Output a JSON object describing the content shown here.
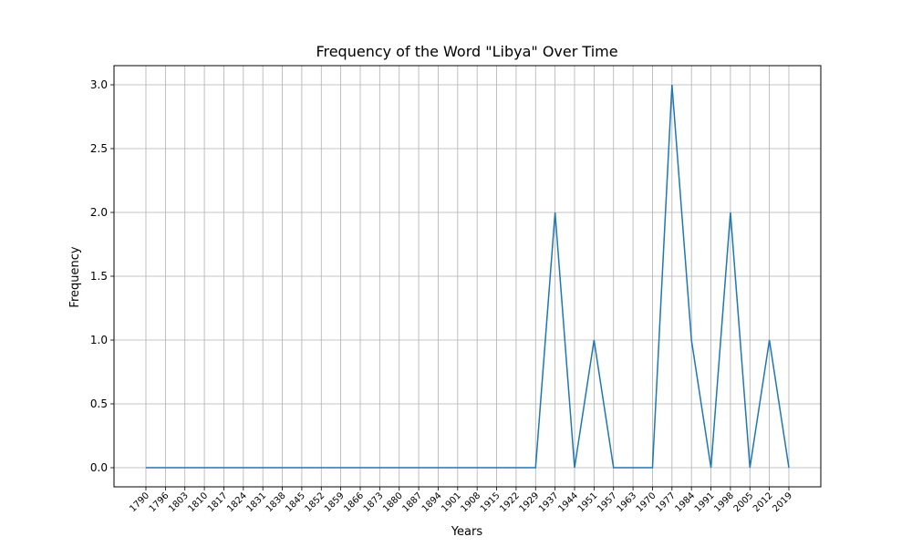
{
  "chart_data": {
    "type": "line",
    "title": "Frequency of the Word \"Libya\" Over Time",
    "xlabel": "Years",
    "ylabel": "Frequency",
    "categories": [
      "1790",
      "1796",
      "1803",
      "1810",
      "1817",
      "1824",
      "1831",
      "1838",
      "1845",
      "1852",
      "1859",
      "1866",
      "1873",
      "1880",
      "1887",
      "1894",
      "1901",
      "1908",
      "1915",
      "1922",
      "1929",
      "1937",
      "1944",
      "1951",
      "1957",
      "1963",
      "1970",
      "1977",
      "1984",
      "1991",
      "1998",
      "2005",
      "2012",
      "2019"
    ],
    "series": [
      {
        "values": [
          0,
          0,
          0,
          0,
          0,
          0,
          0,
          0,
          0,
          0,
          0,
          0,
          0,
          0,
          0,
          0,
          0,
          0,
          0,
          0,
          0,
          2,
          0,
          1,
          0,
          0,
          0,
          3,
          1,
          0,
          2,
          0,
          1,
          0
        ]
      }
    ],
    "yticks": [
      "0.0",
      "0.5",
      "1.0",
      "1.5",
      "2.0",
      "2.5",
      "3.0"
    ],
    "ylim": [
      -0.15,
      3.15
    ],
    "grid": true,
    "line_color": "#1f77b4"
  }
}
